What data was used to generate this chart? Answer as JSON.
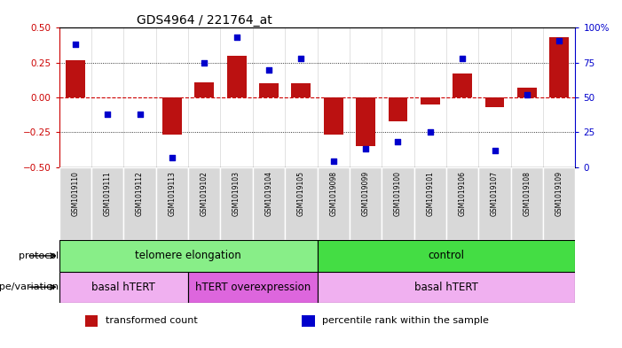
{
  "title": "GDS4964 / 221764_at",
  "samples": [
    "GSM1019110",
    "GSM1019111",
    "GSM1019112",
    "GSM1019113",
    "GSM1019102",
    "GSM1019103",
    "GSM1019104",
    "GSM1019105",
    "GSM1019098",
    "GSM1019099",
    "GSM1019100",
    "GSM1019101",
    "GSM1019106",
    "GSM1019107",
    "GSM1019108",
    "GSM1019109"
  ],
  "bar_values": [
    0.27,
    0.0,
    0.0,
    -0.27,
    0.11,
    0.3,
    0.1,
    0.1,
    -0.27,
    -0.35,
    -0.17,
    -0.05,
    0.17,
    -0.07,
    0.07,
    0.43
  ],
  "dot_percentile": [
    88,
    38,
    38,
    7,
    75,
    93,
    70,
    78,
    4,
    13,
    18,
    25,
    78,
    12,
    52,
    91
  ],
  "ylim": [
    -0.5,
    0.5
  ],
  "y2lim": [
    0,
    100
  ],
  "yticks": [
    -0.5,
    -0.25,
    0.0,
    0.25,
    0.5
  ],
  "y2ticks": [
    0,
    25,
    50,
    75,
    100
  ],
  "dotted_lines": [
    0.25,
    -0.25
  ],
  "bar_color": "#bb1111",
  "dot_color": "#0000cc",
  "protocol_groups": [
    {
      "label": "telomere elongation",
      "start": 0,
      "end": 8,
      "color": "#88ee88"
    },
    {
      "label": "control",
      "start": 8,
      "end": 16,
      "color": "#44dd44"
    }
  ],
  "genotype_groups": [
    {
      "label": "basal hTERT",
      "start": 0,
      "end": 4,
      "color": "#f0b0f0"
    },
    {
      "label": "hTERT overexpression",
      "start": 4,
      "end": 8,
      "color": "#dd66dd"
    },
    {
      "label": "basal hTERT",
      "start": 8,
      "end": 16,
      "color": "#f0b0f0"
    }
  ],
  "legend_items": [
    {
      "color": "#bb1111",
      "label": "transformed count"
    },
    {
      "color": "#0000cc",
      "label": "percentile rank within the sample"
    }
  ],
  "bg_color": "#ffffff",
  "zero_line_color": "#cc0000",
  "axis_color_left": "#cc0000",
  "axis_color_right": "#0000cc",
  "tick_bg_color": "#d8d8d8",
  "tick_sep_color": "#ffffff"
}
